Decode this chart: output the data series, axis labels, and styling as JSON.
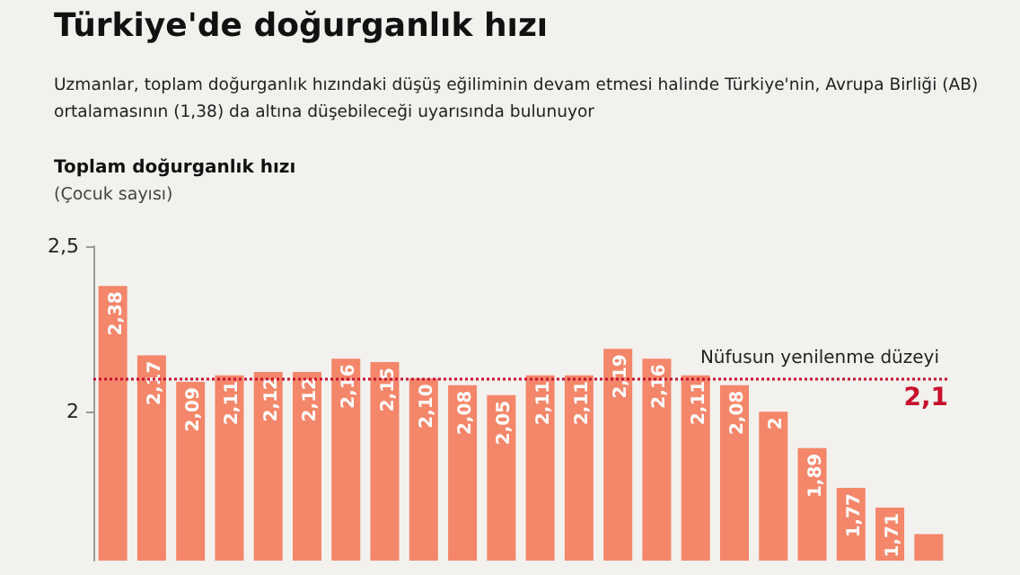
{
  "chart_data": {
    "type": "bar",
    "title": "Türkiye'de doğurganlık hızı",
    "subtitle": "Uzmanlar, toplam doğurganlık hızındaki düşüş eğiliminin devam etmesi halinde Türkiye'nin, Avrupa Birliği (AB) ortalamasının (1,38) da altına düşebileceği uyarısında bulunuyor",
    "ylabel": "Toplam doğurganlık hızı",
    "annotations": [
      "(Çocuk sayısı)",
      {
        "text": "2,1",
        "y": 2.1
      }
    ],
    "categories": [
      null,
      null,
      null,
      null,
      null,
      null,
      null,
      null,
      null,
      null,
      null,
      null,
      null,
      null,
      null,
      null,
      null,
      null,
      null,
      null,
      null,
      null
    ],
    "values": [
      2.38,
      2.17,
      2.09,
      2.11,
      2.12,
      2.12,
      2.16,
      2.15,
      2.1,
      2.08,
      2.05,
      2.11,
      2.11,
      2.19,
      2.16,
      2.11,
      2.08,
      2,
      1.89,
      1.77,
      1.71,
      1.63
    ],
    "value_labels": [
      "2,38",
      "2,17",
      "2,09",
      "2,11",
      "2,12",
      "2,12",
      "2,16",
      "2,15",
      "2,10",
      "2,08",
      "2,05",
      "2,11",
      "2,11",
      "2,19",
      "2,16",
      "2,11",
      "2,08",
      "2",
      "1,89",
      "1,77",
      "1,71",
      null
    ],
    "color": "#f4866a",
    "ylim": [
      1.55,
      2.5
    ],
    "yticks": [
      {
        "value": 2,
        "label": "2"
      },
      {
        "value": 2.5,
        "label": "2,5"
      }
    ],
    "ref_lines": [
      {
        "axis": "y",
        "value": 2.1,
        "label": "Nüfusun yenilenme düzeyi",
        "color": "#c8102e",
        "line_style": "dotted"
      }
    ],
    "grid": false
  }
}
